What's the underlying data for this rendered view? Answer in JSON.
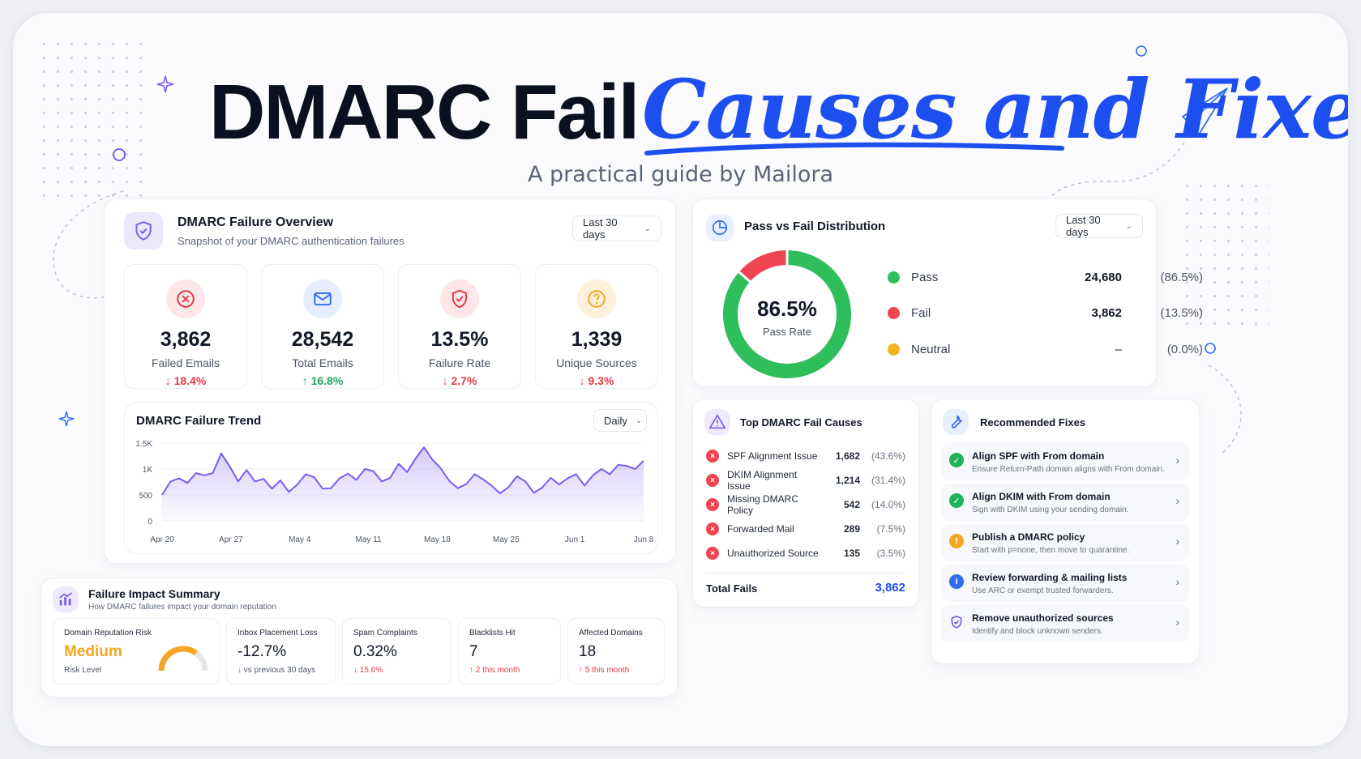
{
  "header": {
    "title_main": "DMARC Fail",
    "title_script": "Causes and Fixes",
    "subtitle": "A practical guide by Mailora"
  },
  "colors": {
    "brand_blue": "#1d4ef0",
    "purple": "#7c5cf0",
    "red": "#e53946",
    "green": "#22a45a",
    "amber": "#f5a623"
  },
  "overview": {
    "title": "DMARC Failure Overview",
    "subtitle": "Snapshot of your DMARC authentication failures",
    "range": "Last 30 days",
    "icon": "shield-icon",
    "stats": [
      {
        "icon": "x-circle-icon",
        "value": "3,862",
        "label": "Failed Emails",
        "change": "18.4%",
        "direction": "down"
      },
      {
        "icon": "mail-icon",
        "value": "28,542",
        "label": "Total Emails",
        "change": "16.8%",
        "direction": "up"
      },
      {
        "icon": "shield-check-icon",
        "value": "13.5%",
        "label": "Failure Rate",
        "change": "2.7%",
        "direction": "down"
      },
      {
        "icon": "question-icon",
        "value": "1,339",
        "label": "Unique Sources",
        "change": "9.3%",
        "direction": "down"
      }
    ]
  },
  "trend": {
    "title": "DMARC Failure Trend",
    "interval": "Daily"
  },
  "chart_data": {
    "type": "area",
    "title": "DMARC Failure Trend",
    "y_ticks": [
      "0",
      "500",
      "1K",
      "1.5K"
    ],
    "ylim": [
      0,
      1500
    ],
    "x_ticks": [
      "Apr 20",
      "Apr 27",
      "May 4",
      "May 11",
      "May 18",
      "May 25",
      "Jun 1",
      "Jun 8"
    ],
    "values": [
      500,
      760,
      820,
      730,
      920,
      880,
      920,
      1300,
      1050,
      760,
      980,
      760,
      810,
      620,
      780,
      560,
      700,
      900,
      840,
      620,
      630,
      820,
      910,
      790,
      1000,
      960,
      760,
      830,
      1100,
      940,
      1200,
      1420,
      1180,
      1010,
      770,
      630,
      710,
      900,
      800,
      680,
      530,
      650,
      860,
      760,
      540,
      640,
      830,
      700,
      820,
      900,
      680,
      880,
      1000,
      900,
      1080,
      1060,
      1000,
      1160
    ]
  },
  "distribution": {
    "title": "Pass vs Fail Distribution",
    "range": "Last 30 days",
    "center_value": "86.5%",
    "center_label": "Pass Rate",
    "items": [
      {
        "name": "Pass",
        "count": "24,680",
        "percent": "(86.5%)",
        "color": "#2fbe5c",
        "share": 86.5
      },
      {
        "name": "Fail",
        "count": "3,862",
        "percent": "(13.5%)",
        "color": "#ef4452",
        "share": 13.5
      },
      {
        "name": "Neutral",
        "count": "–",
        "percent": "(0.0%)",
        "color": "#f5b324",
        "share": 0
      }
    ]
  },
  "causes": {
    "title": "Top DMARC Fail Causes",
    "items": [
      {
        "name": "SPF Alignment Issue",
        "count": "1,682",
        "percent": "(43.6%)"
      },
      {
        "name": "DKIM Alignment Issue",
        "count": "1,214",
        "percent": "(31.4%)"
      },
      {
        "name": "Missing DMARC Policy",
        "count": "542",
        "percent": "(14.0%)"
      },
      {
        "name": "Forwarded Mail",
        "count": "289",
        "percent": "(7.5%)"
      },
      {
        "name": "Unauthorized Source",
        "count": "135",
        "percent": "(3.5%)"
      }
    ],
    "total_label": "Total Fails",
    "total_value": "3,862"
  },
  "fixes": {
    "title": "Recommended Fixes",
    "items": [
      {
        "title": "Align SPF with From domain",
        "desc": "Ensure Return-Path domain aligns with From domain.",
        "icon": "check-icon",
        "color": "#22b35a"
      },
      {
        "title": "Align DKIM with From domain",
        "desc": "Sign with DKIM using your sending domain.",
        "icon": "check-icon",
        "color": "#22b35a"
      },
      {
        "title": "Publish a DMARC policy",
        "desc": "Start with p=none, then move to quarantine.",
        "icon": "warning-icon",
        "color": "#f5a623"
      },
      {
        "title": "Review forwarding & mailing lists",
        "desc": "Use ARC or exempt trusted forwarders.",
        "icon": "info-icon",
        "color": "#2f6cf0"
      },
      {
        "title": "Remove unauthorized sources",
        "desc": "Identify and block unknown senders.",
        "icon": "shield-icon",
        "color": "#6d4ee8"
      }
    ]
  },
  "impact": {
    "title": "Failure Impact Summary",
    "subtitle": "How DMARC failures impact your domain reputation",
    "reputation": {
      "label": "Domain Reputation Risk",
      "value": "Medium",
      "sub": "Risk Level",
      "level": 0.5
    },
    "items": [
      {
        "label": "Inbox Placement Loss",
        "value": "-12.7%",
        "sub": "vs previous 30 days",
        "direction": "down"
      },
      {
        "label": "Spam Complaints",
        "value": "0.32%",
        "sub": "15.6%",
        "direction": "down"
      },
      {
        "label": "Blacklists Hit",
        "value": "7",
        "sub": "2 this month",
        "direction": "up"
      },
      {
        "label": "Affected Domains",
        "value": "18",
        "sub": "5 this month",
        "direction": "up"
      }
    ]
  }
}
